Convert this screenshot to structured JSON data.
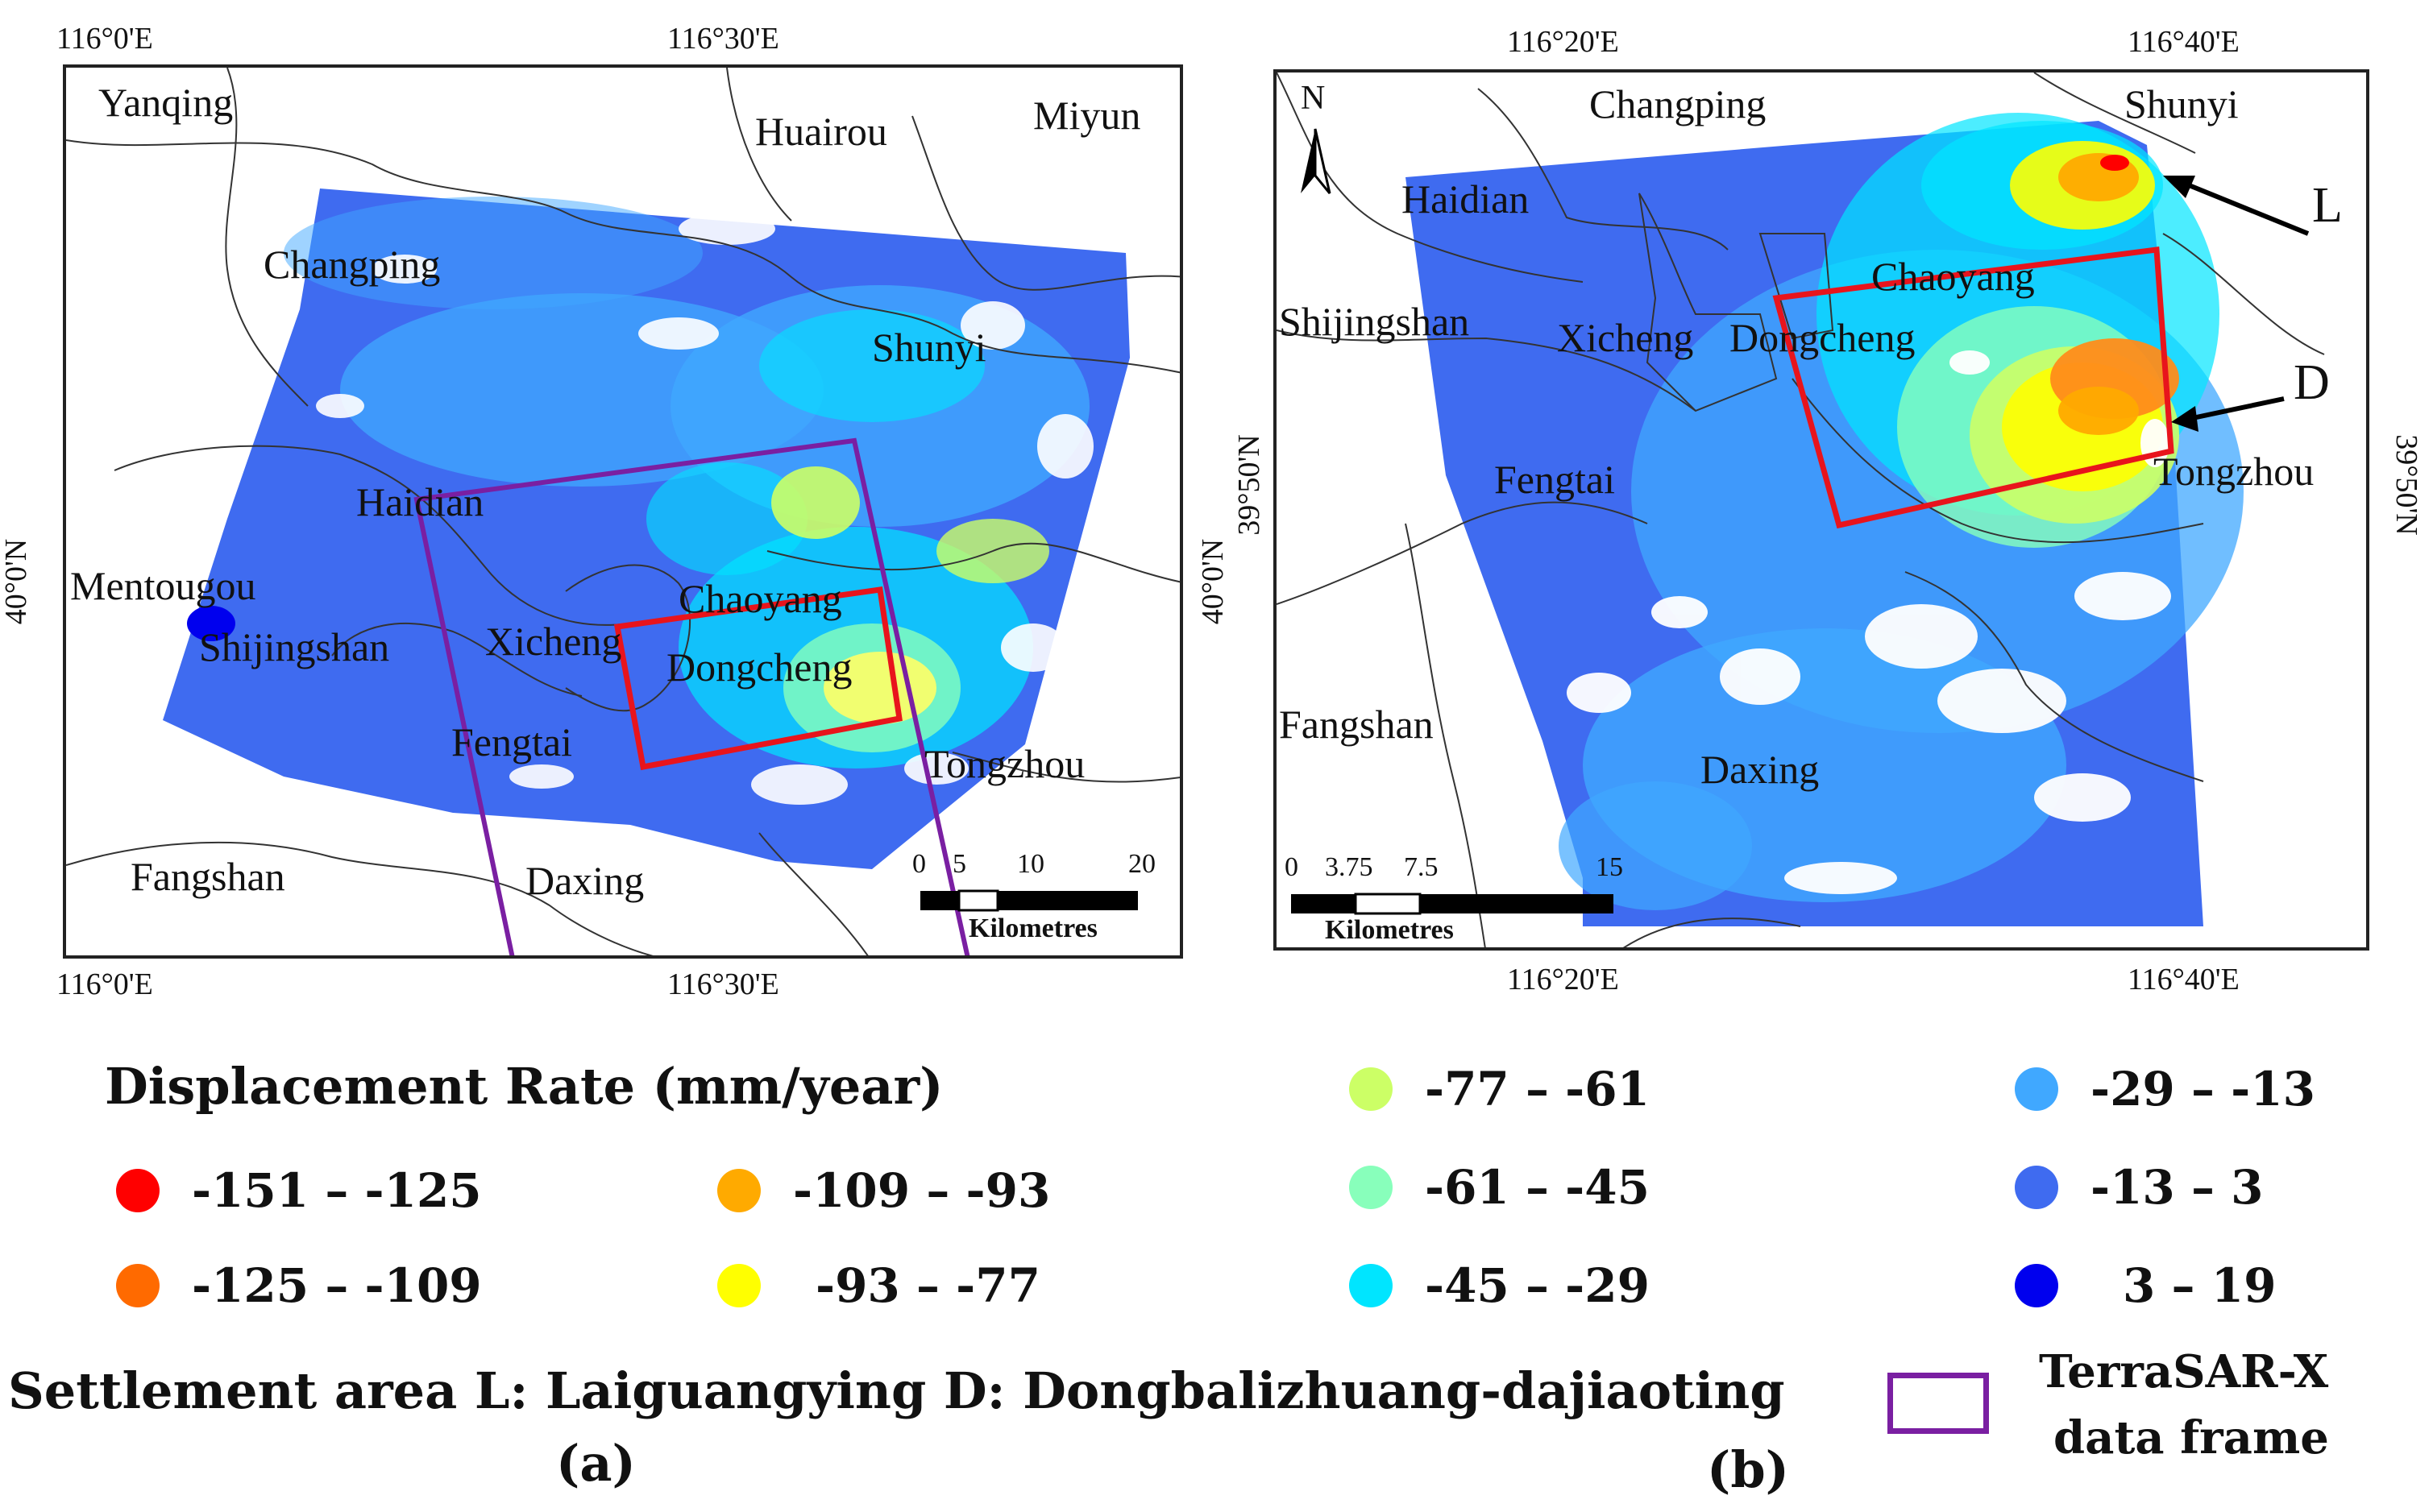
{
  "panel_a": {
    "label": "(a)",
    "lon_labels": [
      "116°0'E",
      "116°30'E"
    ],
    "lat_label": "40°0'N",
    "places": [
      "Yanqing",
      "Huairou",
      "Miyun",
      "Changping",
      "Shunyi",
      "Haidian",
      "Mentougou",
      "Shijingshan",
      "Xicheng",
      "Chaoyang",
      "Dongcheng",
      "Fengtai",
      "Tongzhou",
      "Fangshan",
      "Daxing"
    ],
    "scale_ticks": [
      "0",
      "5",
      "10",
      "20"
    ],
    "scale_unit": "Kilometres"
  },
  "panel_b": {
    "label": "(b)",
    "lon_labels": [
      "116°20'E",
      "116°40'E"
    ],
    "lat_label": "39°50'N",
    "north": "N",
    "places": [
      "Changping",
      "Shunyi",
      "Haidian",
      "Chaoyang",
      "Shijingshan",
      "Xicheng",
      "Dongcheng",
      "Fengtai",
      "Tongzhou",
      "Fangshan",
      "Daxing"
    ],
    "markers": [
      "L",
      "D"
    ],
    "scale_ticks": [
      "0",
      "3.75",
      "7.5",
      "15"
    ],
    "scale_unit": "Kilometres"
  },
  "legend": {
    "title": "Displacement Rate (mm/year)",
    "classes": [
      {
        "label": "-151 – -125",
        "color": "#ff0000"
      },
      {
        "label": "-125 – -109",
        "color": "#ff6a00"
      },
      {
        "label": "-109 – -93",
        "color": "#ffaa00"
      },
      {
        "label": "-93 – -77",
        "color": "#ffff00"
      },
      {
        "label": "-77 – -61",
        "color": "#ccff66"
      },
      {
        "label": "-61 – -45",
        "color": "#88ffbb"
      },
      {
        "label": "-45 – -29",
        "color": "#00e5ff"
      },
      {
        "label": "-29 – -13",
        "color": "#40a8ff"
      },
      {
        "label": "-13 – 3",
        "color": "#3f6bf0"
      },
      {
        "label": "3 – 19",
        "color": "#0000ee"
      }
    ]
  },
  "settlement_note": "Settlement area L: Laiguangying D: Dongbalizhuang-dajiaoting",
  "frame_legend": {
    "line1": "TerraSAR-X",
    "line2": "data frame",
    "color": "#7a1fa2"
  },
  "colors": {
    "study_box": "#e8141c",
    "frame": "#7a1fa2"
  }
}
